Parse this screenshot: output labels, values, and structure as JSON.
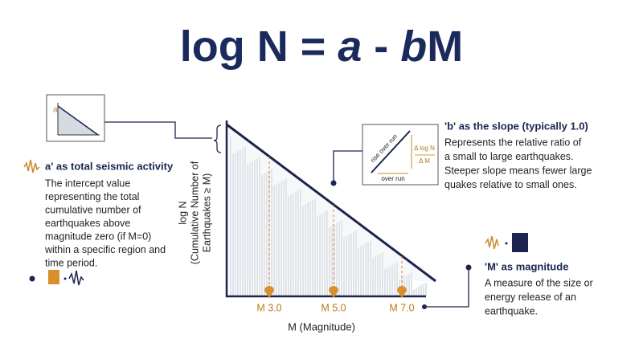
{
  "title": [
    "log N = ",
    "a",
    " - ",
    "b",
    "M"
  ],
  "intercept": {
    "inset_label": "a",
    "heading": "a' as total seismic activity",
    "body": [
      "The intercept value",
      "representing the total",
      "cumulative number of",
      "earthquakes above",
      "magnitude zero (if M=0)",
      "within a specific region and",
      "time period."
    ]
  },
  "slope": {
    "heading": "'b' as the slope (typically 1.0)",
    "body": [
      "Represents the relative ratio of",
      "a small to large earthquakes.",
      "Steeper slope means fewer large",
      "quakes relative to small ones."
    ],
    "inset": {
      "diagonal": "rise over run",
      "numerator": "Δ log N",
      "denominator": "Δ M",
      "bottom": "over run"
    }
  },
  "magnitude": {
    "heading": "'M' as magnitude",
    "body": [
      "A measure of the size or",
      "energy release of an",
      "earthquake."
    ]
  },
  "axes": {
    "y_label": [
      "log N",
      "(Cumulative Number of",
      "Earthquakes ≥ M)"
    ],
    "x_label": "M (Magnitude)",
    "x_ticks": [
      "M 3.0",
      "M 5.0",
      "M 7.0"
    ]
  }
}
